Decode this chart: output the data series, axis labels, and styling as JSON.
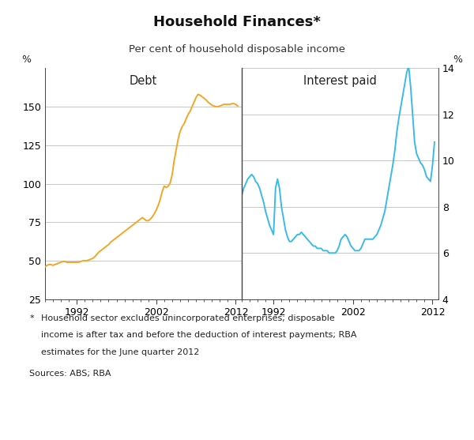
{
  "title": "Household Finances*",
  "subtitle": "Per cent of household disposable income",
  "left_label": "Debt",
  "right_label": "Interest paid",
  "y_label_left": "%",
  "y_label_right": "%",
  "ylim_left": [
    25,
    175
  ],
  "ylim_right": [
    4,
    14
  ],
  "yticks_left": [
    25,
    50,
    75,
    100,
    125,
    150
  ],
  "yticks_right": [
    4,
    6,
    8,
    10,
    12,
    14
  ],
  "xlim_left": [
    1988.0,
    2012.75
  ],
  "xlim_right": [
    1988.0,
    2012.75
  ],
  "xticks_left": [
    1992,
    2002,
    2012
  ],
  "xticks_right": [
    1992,
    2002,
    2012
  ],
  "footnote_line1": "  Household sector excludes unincorporated enterprises; disposable",
  "footnote_line2": "  income is after tax and before the deduction of interest payments; RBA",
  "footnote_line3": "  estimates for the June quarter 2012",
  "sources": "Sources: ABS; RBA",
  "line_color_debt": "#F5A623",
  "line_color_interest": "#3ABAEC",
  "background_color": "#ffffff",
  "grid_color": "#c8c8c8",
  "debt_x": [
    1988.0,
    1988.25,
    1988.5,
    1988.75,
    1989.0,
    1989.25,
    1989.5,
    1989.75,
    1990.0,
    1990.25,
    1990.5,
    1990.75,
    1991.0,
    1991.25,
    1991.5,
    1991.75,
    1992.0,
    1992.25,
    1992.5,
    1992.75,
    1993.0,
    1993.25,
    1993.5,
    1993.75,
    1994.0,
    1994.25,
    1994.5,
    1994.75,
    1995.0,
    1995.25,
    1995.5,
    1995.75,
    1996.0,
    1996.25,
    1996.5,
    1996.75,
    1997.0,
    1997.25,
    1997.5,
    1997.75,
    1998.0,
    1998.25,
    1998.5,
    1998.75,
    1999.0,
    1999.25,
    1999.5,
    1999.75,
    2000.0,
    2000.25,
    2000.5,
    2000.75,
    2001.0,
    2001.25,
    2001.5,
    2001.75,
    2002.0,
    2002.25,
    2002.5,
    2002.75,
    2003.0,
    2003.25,
    2003.5,
    2003.75,
    2004.0,
    2004.25,
    2004.5,
    2004.75,
    2005.0,
    2005.25,
    2005.5,
    2005.75,
    2006.0,
    2006.25,
    2006.5,
    2006.75,
    2007.0,
    2007.25,
    2007.5,
    2007.75,
    2008.0,
    2008.25,
    2008.5,
    2008.75,
    2009.0,
    2009.25,
    2009.5,
    2009.75,
    2010.0,
    2010.25,
    2010.5,
    2010.75,
    2011.0,
    2011.25,
    2011.5,
    2011.75,
    2012.0,
    2012.25
  ],
  "debt_y": [
    46.0,
    47.0,
    47.5,
    47.5,
    47.0,
    47.5,
    48.0,
    48.5,
    49.0,
    49.5,
    49.5,
    49.0,
    49.0,
    49.0,
    49.0,
    49.0,
    49.0,
    49.0,
    49.5,
    50.0,
    50.0,
    50.0,
    50.5,
    51.0,
    51.5,
    52.5,
    54.0,
    55.5,
    56.5,
    57.5,
    58.5,
    59.5,
    60.5,
    62.0,
    63.0,
    64.0,
    65.0,
    66.0,
    67.0,
    68.0,
    69.0,
    70.0,
    71.0,
    72.0,
    73.0,
    74.0,
    75.0,
    76.0,
    77.0,
    78.0,
    77.0,
    76.0,
    76.0,
    77.0,
    78.5,
    80.5,
    83.0,
    86.0,
    90.0,
    95.0,
    98.5,
    97.5,
    98.5,
    100.5,
    106.0,
    115.0,
    122.0,
    129.0,
    134.0,
    137.0,
    139.0,
    142.0,
    145.0,
    147.0,
    150.0,
    153.0,
    156.0,
    158.0,
    157.5,
    156.5,
    155.5,
    154.5,
    153.0,
    152.0,
    151.0,
    150.5,
    150.0,
    150.0,
    150.5,
    151.0,
    151.5,
    151.5,
    151.5,
    151.5,
    152.0,
    152.0,
    151.5,
    150.5
  ],
  "interest_x": [
    1988.0,
    1988.25,
    1988.5,
    1988.75,
    1989.0,
    1989.25,
    1989.5,
    1989.75,
    1990.0,
    1990.25,
    1990.5,
    1990.75,
    1991.0,
    1991.25,
    1991.5,
    1991.75,
    1992.0,
    1992.25,
    1992.5,
    1992.75,
    1993.0,
    1993.25,
    1993.5,
    1993.75,
    1994.0,
    1994.25,
    1994.5,
    1994.75,
    1995.0,
    1995.25,
    1995.5,
    1995.75,
    1996.0,
    1996.25,
    1996.5,
    1996.75,
    1997.0,
    1997.25,
    1997.5,
    1997.75,
    1998.0,
    1998.25,
    1998.5,
    1998.75,
    1999.0,
    1999.25,
    1999.5,
    1999.75,
    2000.0,
    2000.25,
    2000.5,
    2000.75,
    2001.0,
    2001.25,
    2001.5,
    2001.75,
    2002.0,
    2002.25,
    2002.5,
    2002.75,
    2003.0,
    2003.25,
    2003.5,
    2003.75,
    2004.0,
    2004.25,
    2004.5,
    2004.75,
    2005.0,
    2005.25,
    2005.5,
    2005.75,
    2006.0,
    2006.25,
    2006.5,
    2006.75,
    2007.0,
    2007.25,
    2007.5,
    2007.75,
    2008.0,
    2008.25,
    2008.5,
    2008.75,
    2009.0,
    2009.25,
    2009.5,
    2009.75,
    2010.0,
    2010.25,
    2010.5,
    2010.75,
    2011.0,
    2011.25,
    2011.5,
    2011.75,
    2012.0,
    2012.25
  ],
  "interest_y": [
    8.5,
    8.8,
    9.0,
    9.2,
    9.3,
    9.4,
    9.3,
    9.1,
    9.0,
    8.8,
    8.5,
    8.2,
    7.8,
    7.5,
    7.2,
    7.0,
    6.8,
    8.8,
    9.2,
    8.8,
    8.0,
    7.5,
    7.0,
    6.7,
    6.5,
    6.5,
    6.6,
    6.7,
    6.8,
    6.8,
    6.9,
    6.8,
    6.7,
    6.6,
    6.5,
    6.4,
    6.3,
    6.3,
    6.2,
    6.2,
    6.2,
    6.1,
    6.1,
    6.1,
    6.0,
    6.0,
    6.0,
    6.0,
    6.1,
    6.3,
    6.6,
    6.7,
    6.8,
    6.7,
    6.5,
    6.3,
    6.2,
    6.1,
    6.1,
    6.1,
    6.2,
    6.4,
    6.6,
    6.6,
    6.6,
    6.6,
    6.6,
    6.7,
    6.8,
    7.0,
    7.2,
    7.5,
    7.8,
    8.3,
    8.8,
    9.3,
    9.8,
    10.4,
    11.2,
    11.8,
    12.3,
    12.8,
    13.3,
    13.8,
    14.1,
    13.2,
    12.0,
    10.8,
    10.3,
    10.1,
    9.9,
    9.8,
    9.6,
    9.3,
    9.2,
    9.1,
    9.8,
    10.8
  ],
  "title_fontsize": 13,
  "subtitle_fontsize": 9.5,
  "label_fontsize": 10.5,
  "tick_fontsize": 9,
  "footnote_fontsize": 8
}
